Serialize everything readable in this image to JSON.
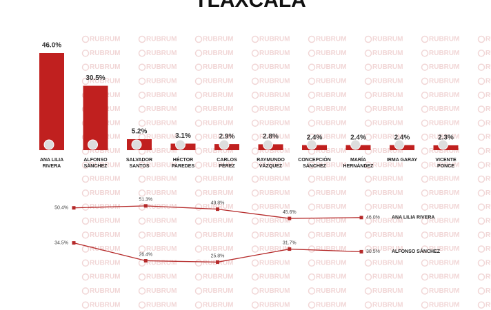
{
  "watermark": "RUBRUM",
  "chart_data": [
    {
      "type": "bar",
      "title": "TLAXCALA",
      "categories": [
        "ANA LILIA\nRIVERA",
        "ALFONSO\nSÁNCHEZ",
        "SALVADOR\nSANTOS",
        "HÉCTOR\nPAREDES",
        "CARLOS\nPÉREZ",
        "RAYMUNDO\nVÁZQUEZ",
        "CONCEPCIÓN\nSÁNCHEZ",
        "MARÍA\nHERNÁNDEZ",
        "IRMA GARAY",
        "VICENTE\nPONCE"
      ],
      "values": [
        46.0,
        30.5,
        5.2,
        3.1,
        2.9,
        2.8,
        2.4,
        2.4,
        2.4,
        2.3
      ],
      "value_labels": [
        "46.0%",
        "30.5%",
        "5.2%",
        "3.1%",
        "2.9%",
        "2.8%",
        "2.4%",
        "2.4%",
        "2.4%",
        "2.3%"
      ],
      "color": "#c0201f"
    },
    {
      "type": "line",
      "series": [
        {
          "name": "ANA LILIA RIVERA",
          "color": "#b52a2a",
          "values": [
            50.4,
            51.3,
            49.8,
            45.6,
            46.0
          ],
          "value_labels": [
            "50.4%",
            "51.3%",
            "49.8%",
            "45.6%",
            "46.0%"
          ]
        },
        {
          "name": "ALFONSO SÁNCHEZ",
          "color": "#b52a2a",
          "values": [
            34.5,
            26.4,
            25.8,
            31.7,
            30.5
          ],
          "value_labels": [
            "34.5%",
            "26.4%",
            "25.8%",
            "31.7%",
            "30.5%"
          ]
        }
      ]
    }
  ]
}
